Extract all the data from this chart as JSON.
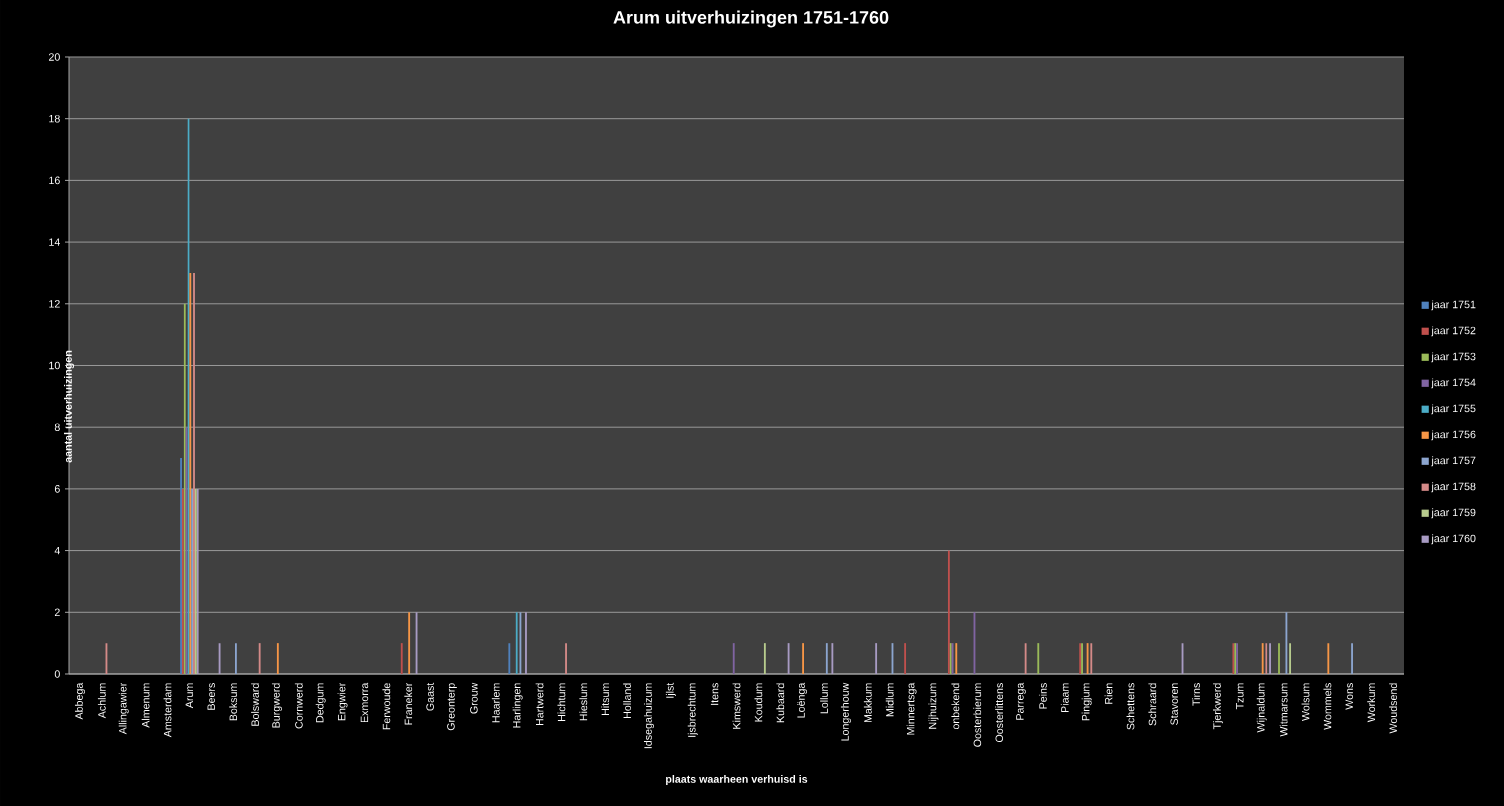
{
  "chart_data": {
    "type": "bar",
    "title": "Arum uitverhuizingen 1751-1760",
    "xlabel": "plaats waarheen verhuisd is",
    "ylabel": "aantal uitverhuizingen",
    "categories": [
      "Abbega",
      "Achlum",
      "Allingawier",
      "Almenum",
      "Amsterdam",
      "Arum",
      "Beers",
      "Boksum",
      "Bolsward",
      "Burgwerd",
      "Cornwerd",
      "Dedgum",
      "Engwier",
      "Exmorra",
      "Ferwoude",
      "Franeker",
      "Gaast",
      "Greonterp",
      "Grouw",
      "Haarlem",
      "Harlingen",
      "Hartwerd",
      "Hichtum",
      "Hieslum",
      "Hitsum",
      "Holland",
      "Idsegahuizum",
      "Ijlst",
      "Ijsbrechtum",
      "Itens",
      "Kimswerd",
      "Koudum",
      "Kubaard",
      "Loënga",
      "Lollum",
      "Longerhouw",
      "Makkum",
      "Midlum",
      "Minnertsga",
      "Nijhuizum",
      "onbekend",
      "Oosterbierum",
      "Oosterlittens",
      "Parrega",
      "Peins",
      "Piaam",
      "Pingjum",
      "Rien",
      "Schettens",
      "Schraard",
      "Stavoren",
      "Tirns",
      "Tjerkwerd",
      "Tzum",
      "Wijnaldum",
      "Witmarsum",
      "Wolsum",
      "Wommels",
      "Wons",
      "Workum",
      "Woudsend"
    ],
    "series": [
      {
        "name": "jaar 1751",
        "color": "#4f81bd",
        "values": [
          null,
          null,
          null,
          null,
          null,
          7,
          null,
          null,
          null,
          null,
          null,
          null,
          null,
          null,
          null,
          null,
          null,
          null,
          null,
          null,
          1,
          null,
          null,
          null,
          null,
          null,
          null,
          null,
          null,
          null,
          null,
          null,
          null,
          null,
          null,
          null,
          null,
          null,
          null,
          null,
          null,
          null,
          null,
          null,
          null,
          null,
          null,
          null,
          null,
          null,
          null,
          null,
          null,
          null,
          null,
          null,
          null,
          null,
          null,
          null,
          null
        ]
      },
      {
        "name": "jaar 1752",
        "color": "#c0504d",
        "values": [
          null,
          null,
          null,
          null,
          null,
          6,
          null,
          null,
          null,
          null,
          null,
          null,
          null,
          null,
          null,
          1,
          null,
          null,
          null,
          null,
          null,
          null,
          null,
          null,
          null,
          null,
          null,
          null,
          null,
          null,
          null,
          null,
          null,
          null,
          null,
          null,
          null,
          null,
          1,
          null,
          4,
          null,
          null,
          null,
          null,
          null,
          1,
          null,
          null,
          null,
          null,
          null,
          null,
          1,
          null,
          null,
          null,
          null,
          null,
          null,
          null
        ]
      },
      {
        "name": "jaar 1753",
        "color": "#9bbb59",
        "values": [
          null,
          null,
          null,
          null,
          null,
          12,
          null,
          null,
          null,
          null,
          null,
          null,
          null,
          null,
          null,
          null,
          null,
          null,
          null,
          null,
          null,
          null,
          null,
          null,
          null,
          null,
          null,
          null,
          null,
          null,
          null,
          null,
          null,
          null,
          null,
          null,
          null,
          null,
          null,
          null,
          1,
          null,
          null,
          null,
          1,
          null,
          1,
          null,
          null,
          null,
          null,
          null,
          null,
          1,
          null,
          1,
          null,
          null,
          null,
          null,
          null
        ]
      },
      {
        "name": "jaar 1754",
        "color": "#8064a2",
        "values": [
          null,
          null,
          null,
          null,
          null,
          8,
          null,
          null,
          null,
          null,
          null,
          null,
          null,
          null,
          null,
          null,
          null,
          null,
          null,
          null,
          null,
          null,
          null,
          null,
          null,
          null,
          null,
          null,
          null,
          null,
          1,
          null,
          null,
          null,
          null,
          null,
          null,
          null,
          null,
          null,
          1,
          2,
          null,
          null,
          null,
          null,
          null,
          null,
          null,
          null,
          null,
          null,
          null,
          1,
          null,
          null,
          null,
          null,
          null,
          null,
          null
        ]
      },
      {
        "name": "jaar 1755",
        "color": "#4bacc6",
        "values": [
          null,
          null,
          null,
          null,
          null,
          18,
          null,
          null,
          null,
          null,
          null,
          null,
          null,
          null,
          null,
          null,
          null,
          null,
          null,
          null,
          2,
          null,
          null,
          null,
          null,
          null,
          null,
          null,
          null,
          null,
          null,
          null,
          null,
          null,
          null,
          null,
          null,
          null,
          null,
          null,
          null,
          null,
          null,
          null,
          null,
          null,
          null,
          null,
          null,
          null,
          null,
          null,
          null,
          null,
          null,
          null,
          null,
          null,
          null,
          null,
          null
        ]
      },
      {
        "name": "jaar 1756",
        "color": "#f79646",
        "values": [
          null,
          null,
          null,
          null,
          null,
          13,
          null,
          null,
          null,
          1,
          null,
          null,
          null,
          null,
          null,
          2,
          null,
          null,
          null,
          null,
          null,
          null,
          null,
          null,
          null,
          null,
          null,
          null,
          null,
          null,
          null,
          null,
          null,
          1,
          null,
          null,
          null,
          null,
          null,
          null,
          1,
          null,
          null,
          null,
          null,
          null,
          1,
          null,
          null,
          null,
          null,
          null,
          null,
          null,
          1,
          null,
          null,
          1,
          null,
          null,
          null
        ]
      },
      {
        "name": "jaar 1757",
        "color": "#8ca5cf",
        "values": [
          null,
          null,
          null,
          null,
          null,
          6,
          null,
          1,
          null,
          null,
          null,
          null,
          null,
          null,
          null,
          null,
          null,
          null,
          null,
          null,
          2,
          null,
          null,
          null,
          null,
          null,
          null,
          null,
          null,
          null,
          null,
          null,
          null,
          null,
          1,
          null,
          null,
          1,
          null,
          null,
          null,
          null,
          null,
          null,
          null,
          null,
          null,
          null,
          null,
          null,
          null,
          null,
          null,
          null,
          null,
          2,
          null,
          null,
          1,
          null,
          null
        ]
      },
      {
        "name": "jaar 1758",
        "color": "#d48a88",
        "values": [
          null,
          1,
          null,
          null,
          null,
          13,
          null,
          null,
          1,
          null,
          null,
          null,
          null,
          null,
          null,
          null,
          null,
          null,
          null,
          null,
          null,
          null,
          1,
          null,
          null,
          null,
          null,
          null,
          null,
          null,
          null,
          null,
          null,
          null,
          null,
          null,
          null,
          null,
          null,
          null,
          null,
          null,
          null,
          1,
          null,
          null,
          1,
          null,
          null,
          null,
          null,
          null,
          null,
          null,
          1,
          null,
          null,
          null,
          null,
          null,
          null
        ]
      },
      {
        "name": "jaar 1759",
        "color": "#b7cb8d",
        "values": [
          null,
          null,
          null,
          null,
          null,
          6,
          null,
          null,
          null,
          null,
          null,
          null,
          null,
          null,
          null,
          null,
          null,
          null,
          null,
          null,
          null,
          null,
          null,
          null,
          null,
          null,
          null,
          null,
          null,
          null,
          null,
          1,
          null,
          null,
          null,
          null,
          null,
          null,
          null,
          null,
          null,
          null,
          null,
          null,
          null,
          null,
          null,
          null,
          null,
          null,
          null,
          null,
          null,
          null,
          null,
          1,
          null,
          null,
          null,
          null,
          null
        ]
      },
      {
        "name": "jaar 1760",
        "color": "#a89bc3",
        "values": [
          null,
          null,
          null,
          null,
          null,
          6,
          1,
          null,
          null,
          null,
          null,
          null,
          null,
          null,
          null,
          2,
          null,
          null,
          null,
          null,
          2,
          null,
          null,
          null,
          null,
          null,
          null,
          null,
          null,
          null,
          null,
          null,
          1,
          null,
          1,
          null,
          1,
          null,
          null,
          null,
          null,
          null,
          null,
          null,
          null,
          null,
          null,
          null,
          null,
          null,
          1,
          null,
          null,
          null,
          1,
          null,
          null,
          null,
          null,
          null,
          null
        ]
      }
    ],
    "ylim": [
      0,
      20
    ],
    "yticks": [
      0,
      2,
      4,
      6,
      8,
      10,
      12,
      14,
      16,
      18,
      20
    ],
    "grid": "y",
    "legend": "right"
  }
}
